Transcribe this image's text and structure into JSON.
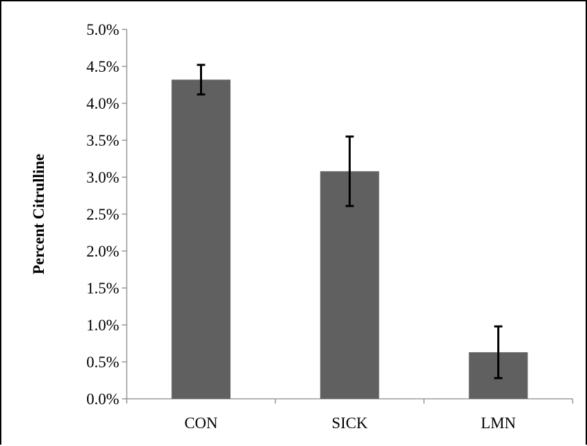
{
  "chart_data": {
    "type": "bar",
    "title": "",
    "xlabel": "",
    "ylabel": "Percent Citrulline",
    "categories": [
      "CON",
      "SICK",
      "LMN"
    ],
    "series": [
      {
        "values": [
          0.0432,
          0.0308,
          0.0063
        ],
        "error": [
          0.002,
          0.0047,
          0.0035
        ]
      }
    ],
    "ylim": [
      0,
      0.05
    ],
    "yticks": [
      0,
      0.005,
      0.01,
      0.015,
      0.02,
      0.025,
      0.03,
      0.035,
      0.04,
      0.045,
      0.05
    ],
    "ytick_labels": [
      "0.0%",
      "0.5%",
      "1.0%",
      "1.5%",
      "2.0%",
      "2.5%",
      "3.0%",
      "3.5%",
      "4.0%",
      "4.5%",
      "5.0%"
    ],
    "bar_color": "#606060",
    "error_bar_color": "#000000",
    "grid": false,
    "legend": "none"
  }
}
